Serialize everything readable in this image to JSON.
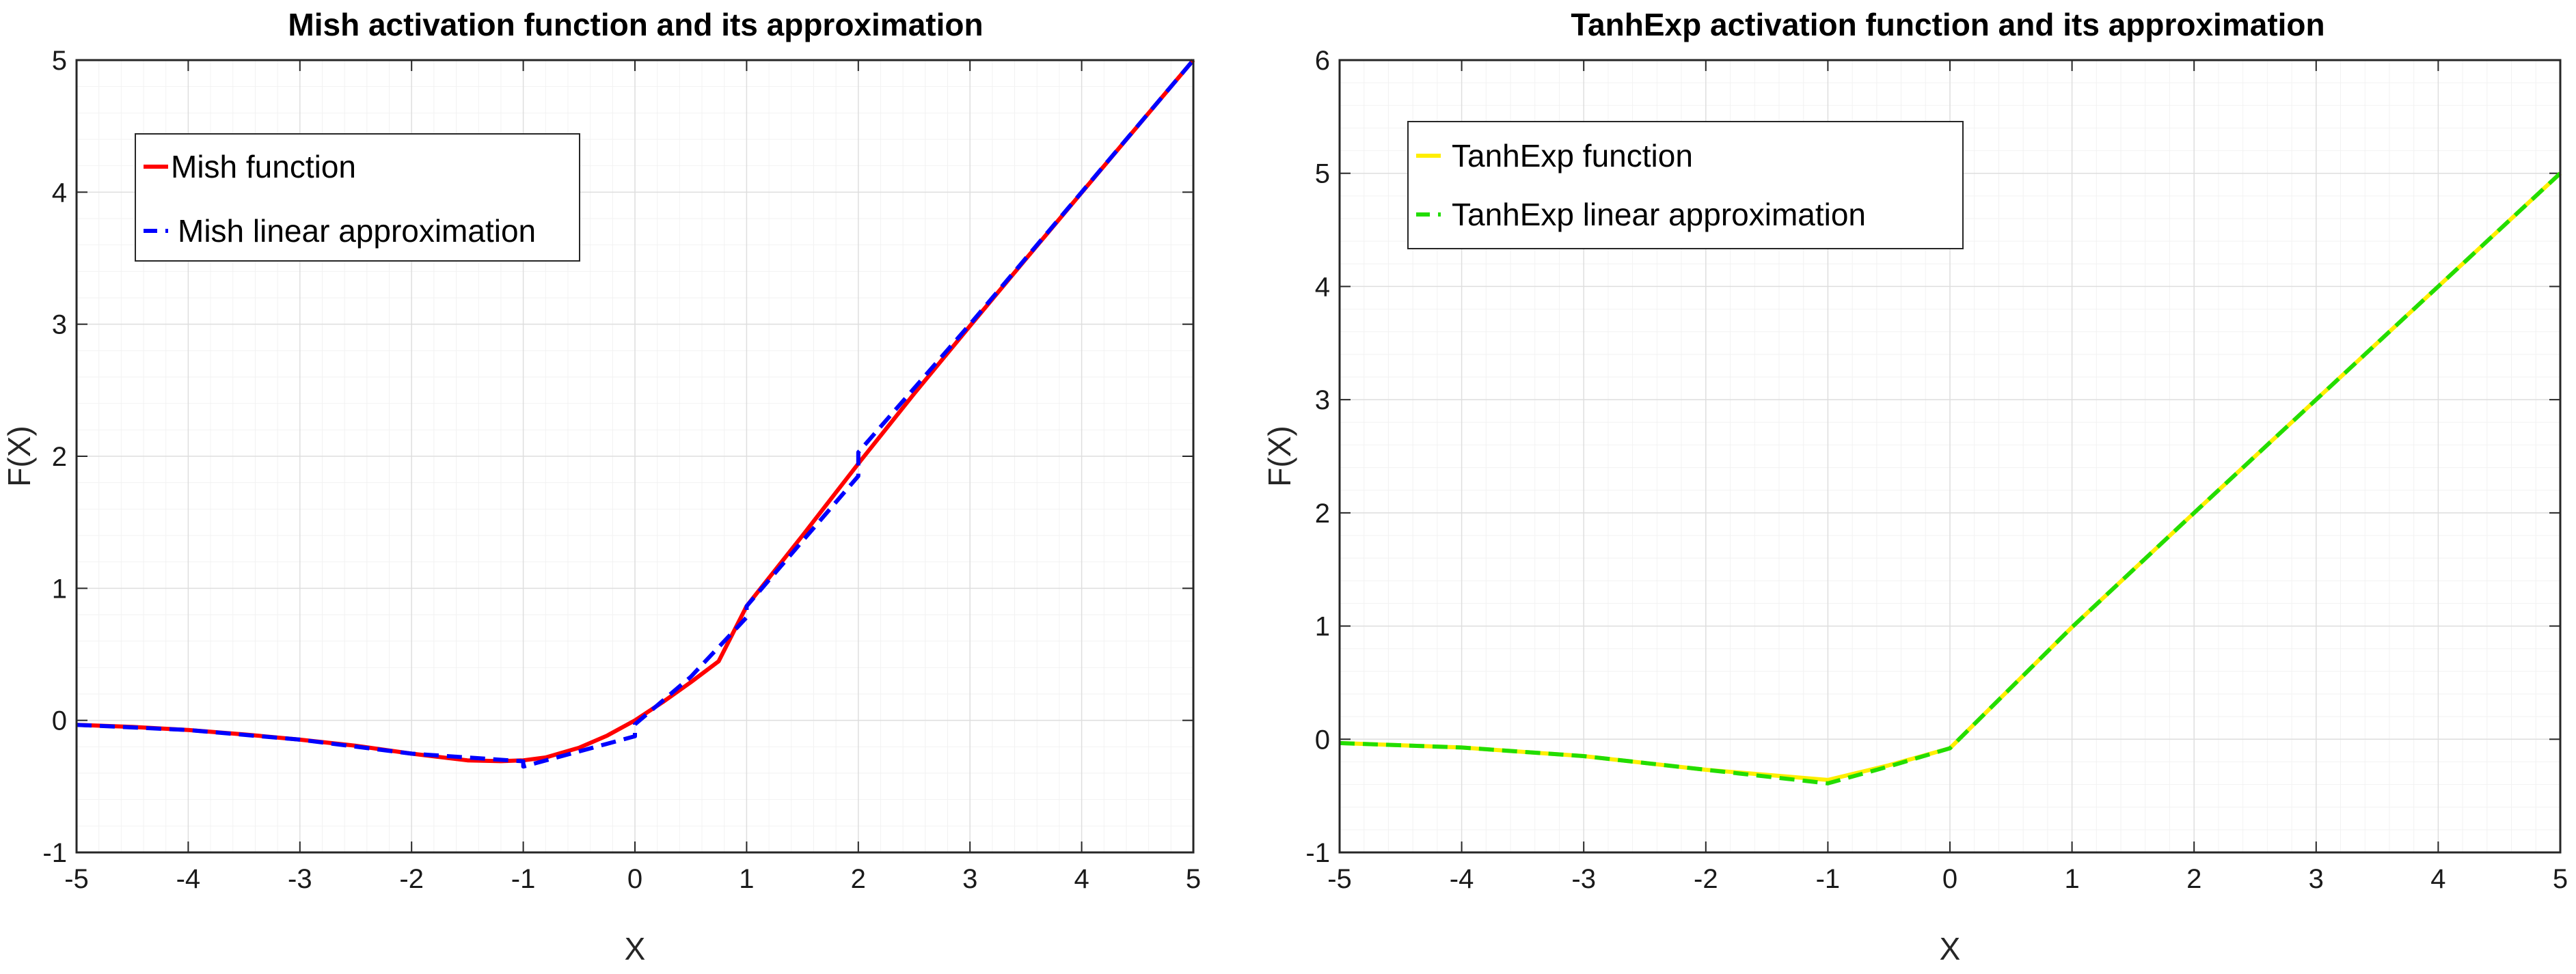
{
  "chart_data": [
    {
      "type": "line",
      "title": "Mish activation function and its approximation",
      "xlabel": "X",
      "ylabel": "F(X)",
      "xlim": [
        -5,
        5
      ],
      "ylim": [
        -1,
        5
      ],
      "xticks": [
        -5,
        -4,
        -3,
        -2,
        -1,
        0,
        1,
        2,
        3,
        4,
        5
      ],
      "yticks": [
        -1,
        0,
        1,
        2,
        3,
        4,
        5
      ],
      "grid": true,
      "legend_position": "top-left",
      "series": [
        {
          "name": "Mish function",
          "color": "#ff0000",
          "style": "solid",
          "x": [
            -5,
            -4.5,
            -4,
            -3.5,
            -3,
            -2.5,
            -2,
            -1.5,
            -1.2,
            -1,
            -0.8,
            -0.5,
            -0.25,
            0,
            0.25,
            0.5,
            0.75,
            1,
            1.5,
            2,
            2.5,
            3,
            3.5,
            4,
            4.5,
            5
          ],
          "y": [
            -0.034,
            -0.05,
            -0.073,
            -0.106,
            -0.146,
            -0.192,
            -0.252,
            -0.303,
            -0.309,
            -0.303,
            -0.281,
            -0.207,
            -0.116,
            0.0,
            0.139,
            0.289,
            0.448,
            0.865,
            1.399,
            1.944,
            2.474,
            2.987,
            3.494,
            3.997,
            4.499,
            5.0
          ]
        },
        {
          "name": "Mish linear approximation",
          "color": "#0000ff",
          "style": "dashed",
          "x": [
            -5,
            -4,
            -3,
            -2,
            -1,
            -1,
            0,
            0,
            0.5,
            1,
            1,
            2,
            2,
            3,
            4,
            5
          ],
          "y": [
            -0.034,
            -0.073,
            -0.146,
            -0.252,
            -0.31,
            -0.35,
            -0.12,
            -0.03,
            0.33,
            0.78,
            0.865,
            1.85,
            2.03,
            3.0,
            4.0,
            5.0
          ]
        }
      ]
    },
    {
      "type": "line",
      "title": "TanhExp activation function and its approximation",
      "xlabel": "X",
      "ylabel": "F(X)",
      "xlim": [
        -5,
        5
      ],
      "ylim": [
        -1,
        6
      ],
      "xticks": [
        -5,
        -4,
        -3,
        -2,
        -1,
        0,
        1,
        2,
        3,
        4,
        5
      ],
      "yticks": [
        -1,
        0,
        1,
        2,
        3,
        4,
        5,
        6
      ],
      "grid": true,
      "legend_position": "top-left",
      "series": [
        {
          "name": "TanhExp function",
          "color": "#ffee00",
          "style": "solid",
          "x": [
            -5,
            -4,
            -3,
            -2,
            -1,
            -0.5,
            0,
            1,
            2,
            3,
            4,
            5
          ],
          "y": [
            -0.034,
            -0.073,
            -0.149,
            -0.27,
            -0.36,
            -0.23,
            -0.08,
            0.99,
            2.0,
            3.0,
            4.0,
            5.0
          ]
        },
        {
          "name": "TanhExp linear approximation",
          "color": "#22dd00",
          "style": "dashed",
          "x": [
            -5,
            -4,
            -3,
            -2,
            -1,
            -0.5,
            0,
            1,
            2,
            3,
            4,
            5
          ],
          "y": [
            -0.034,
            -0.073,
            -0.149,
            -0.27,
            -0.39,
            -0.24,
            -0.08,
            0.99,
            2.0,
            3.0,
            4.0,
            5.0
          ]
        }
      ]
    }
  ]
}
